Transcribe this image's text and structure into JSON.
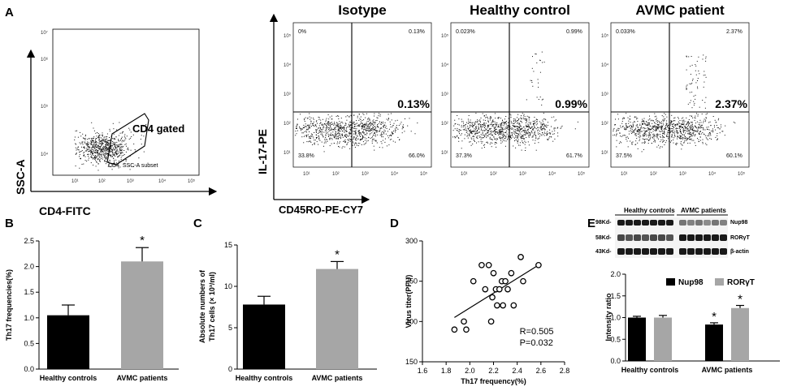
{
  "colors": {
    "black": "#000000",
    "gray": "#a6a6a6",
    "dot": "#111111"
  },
  "panel_letters": {
    "A": "A",
    "B": "B",
    "C": "C",
    "D": "D",
    "E": "E"
  },
  "gating": {
    "y_axis_label": "SSC-A",
    "x_axis_label": "CD4-FITC",
    "gate_label": "CD4 gated",
    "gate_sublabel": "CD4, SSC-A subset",
    "y_ticks": [
      "10⁴",
      "10⁵",
      "10⁶",
      "10⁷"
    ],
    "x_ticks": [
      "10¹",
      "10²",
      "10³",
      "10⁴",
      "10⁵"
    ]
  },
  "flow_shared": {
    "y_axis_label": "IL-17-PE",
    "x_axis_label": "CD45RO-PE-CY7",
    "y_ticks": [
      "10¹",
      "10²",
      "10³",
      "10⁴",
      "10⁵"
    ],
    "x_ticks": [
      "10¹",
      "10²",
      "10³",
      "10⁴",
      "10⁵"
    ]
  },
  "flow_plots": [
    {
      "title": "Isotype",
      "q_ul": "0%",
      "q_ur": "0.13%",
      "q_ll": "33.8%",
      "q_lr": "66.0%",
      "highlight": "0.13%"
    },
    {
      "title": "Healthy control",
      "q_ul": "0.023%",
      "q_ur": "0.99%",
      "q_ll": "37.3%",
      "q_lr": "61.7%",
      "highlight": "0.99%"
    },
    {
      "title": "AVMC patient",
      "q_ul": "0.033%",
      "q_ur": "2.37%",
      "q_ll": "37.5%",
      "q_lr": "60.1%",
      "highlight": "2.37%"
    }
  ],
  "chart_data": [
    {
      "panel": "B",
      "type": "bar",
      "categories": [
        "Healthy controls",
        "AVMC patients"
      ],
      "values": [
        1.05,
        2.1
      ],
      "errors": [
        0.2,
        0.27
      ],
      "colors": [
        "#000000",
        "#a6a6a6"
      ],
      "ylabel": "Th17 frequencies(%)",
      "ylim": [
        0,
        2.5
      ],
      "yticks": [
        "0.0",
        "0.5",
        "1.0",
        "1.5",
        "2.0",
        "2.5"
      ],
      "ytick_values": [
        0,
        0.5,
        1.0,
        1.5,
        2.0,
        2.5
      ],
      "annotation": "*"
    },
    {
      "panel": "C",
      "type": "bar",
      "categories": [
        "Healthy controls",
        "AVMC patients"
      ],
      "values": [
        7.8,
        12.1
      ],
      "errors": [
        1.0,
        0.9
      ],
      "colors": [
        "#000000",
        "#a6a6a6"
      ],
      "ylabel_line1": "Absolute numbers of",
      "ylabel_line2": "Th17 cells (× 10³/ml)",
      "ylim": [
        0,
        15
      ],
      "yticks": [
        "0",
        "5",
        "10",
        "15"
      ],
      "ytick_values": [
        0,
        5,
        10,
        15
      ],
      "annotation": "*"
    },
    {
      "panel": "D",
      "type": "scatter",
      "x": [
        1.87,
        1.95,
        1.97,
        2.03,
        2.1,
        2.13,
        2.16,
        2.18,
        2.19,
        2.2,
        2.22,
        2.23,
        2.25,
        2.27,
        2.28,
        2.3,
        2.32,
        2.35,
        2.37,
        2.43,
        2.45,
        2.58
      ],
      "y": [
        190,
        200,
        190,
        250,
        270,
        240,
        270,
        200,
        230,
        260,
        240,
        220,
        240,
        250,
        220,
        250,
        240,
        260,
        220,
        280,
        250,
        270
      ],
      "regression": {
        "x0": 1.87,
        "y0": 205,
        "x1": 2.58,
        "y1": 270
      },
      "xlabel": "Th17 frequency(%)",
      "ylabel": "Virus titer(PFU)",
      "xlim": [
        1.6,
        2.8
      ],
      "ylim": [
        150,
        300
      ],
      "xticks": [
        "1.6",
        "1.8",
        "2.0",
        "2.2",
        "2.4",
        "2.6",
        "2.8"
      ],
      "xtick_values": [
        1.6,
        1.8,
        2.0,
        2.2,
        2.4,
        2.6,
        2.8
      ],
      "yticks": [
        "150",
        "200",
        "250",
        "300"
      ],
      "ytick_values": [
        150,
        200,
        250,
        300
      ],
      "stat_r": "R=0.505",
      "stat_p": "P=0.032"
    },
    {
      "panel": "E",
      "type": "bar",
      "categories": [
        "Healthy controls",
        "AVMC patients"
      ],
      "series": [
        {
          "name": "Nup98",
          "values": [
            1.0,
            0.84
          ],
          "errors": [
            0.03,
            0.04
          ],
          "color": "#000000"
        },
        {
          "name": "RORγT",
          "values": [
            1.0,
            1.22
          ],
          "errors": [
            0.05,
            0.06
          ],
          "color": "#a6a6a6"
        }
      ],
      "ylabel": "Intensity ratio",
      "ylim": [
        0,
        2.0
      ],
      "yticks": [
        "0.0",
        "0.5",
        "1.0",
        "1.5",
        "2.0"
      ],
      "ytick_values": [
        0,
        0.5,
        1.0,
        1.5,
        2.0
      ],
      "annotations": [
        "*",
        "*"
      ]
    }
  ],
  "blot": {
    "group_labels": [
      "Healthy controls",
      "AVMC patients"
    ],
    "size_labels": [
      "98Kd-",
      "58Kd-",
      "43Kd-"
    ],
    "protein_labels": [
      "Nup98",
      "RORγT",
      "β-actin"
    ]
  }
}
